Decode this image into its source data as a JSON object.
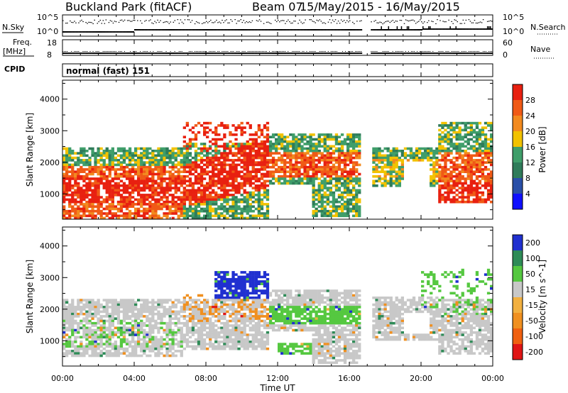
{
  "header": {
    "title": "Buckland Park (fitACF)",
    "beam": "Beam 07",
    "date_range": "15/May/2015 - 16/May/2015"
  },
  "top_panels": {
    "nsky_label": "N.Sky",
    "nsearch_label": "N.Search",
    "nsky_ticks": [
      "10^5",
      "10^0"
    ],
    "nsearch_ticks": [
      "10^5",
      "10^0"
    ],
    "freq_label": "Freq.",
    "freq_unit": "[MHz]",
    "freq_ticks": [
      "18",
      "8"
    ],
    "nave_label": "Nave",
    "nave_ticks": [
      "60",
      "0"
    ],
    "cpid_label": "CPID",
    "cpid_value": "normal (fast) 151"
  },
  "colors": {
    "power_scale": [
      "#1010ff",
      "#2a4fa8",
      "#2f7c5a",
      "#3f9e6a",
      "#f2c200",
      "#f28a1f",
      "#f05a16",
      "#e82010"
    ],
    "velocity_scale": [
      "#e01515",
      "#f06010",
      "#f09020",
      "#f2b040",
      "#c8c8c8",
      "#55c840",
      "#2e8b57",
      "#2030d0"
    ]
  },
  "chart_data": [
    {
      "type": "heatmap",
      "name": "Power",
      "ylabel": "Slant Range [km]",
      "xlabel": "Time UT",
      "x_ticks": [
        "00:00",
        "04:00",
        "08:00",
        "12:00",
        "16:00",
        "20:00",
        "00:00"
      ],
      "y_ticks": [
        "1000",
        "2000",
        "3000",
        "4000"
      ],
      "ylim": [
        200,
        4600
      ],
      "xlim_hours": [
        0,
        24
      ],
      "data_gap_hours": [
        16.7,
        17.2
      ],
      "colorbar_label": "Power [dB]",
      "colorbar_ticks": [
        "4",
        "8",
        "12",
        "16",
        "20",
        "24",
        "28"
      ],
      "colorbar_range": [
        0,
        32
      ]
    },
    {
      "type": "heatmap",
      "name": "Velocity",
      "ylabel": "Slant Range [km]",
      "xlabel": "Time UT",
      "x_ticks": [
        "00:00",
        "04:00",
        "08:00",
        "12:00",
        "16:00",
        "20:00",
        "00:00"
      ],
      "y_ticks": [
        "1000",
        "2000",
        "3000",
        "4000"
      ],
      "ylim": [
        200,
        4600
      ],
      "xlim_hours": [
        0,
        24
      ],
      "data_gap_hours": [
        16.7,
        17.2
      ],
      "colorbar_label": "Velocity [m s^-1]",
      "colorbar_ticks": [
        "200",
        "100",
        "50",
        "15",
        "-15",
        "-50",
        "-100",
        "-200"
      ]
    }
  ]
}
